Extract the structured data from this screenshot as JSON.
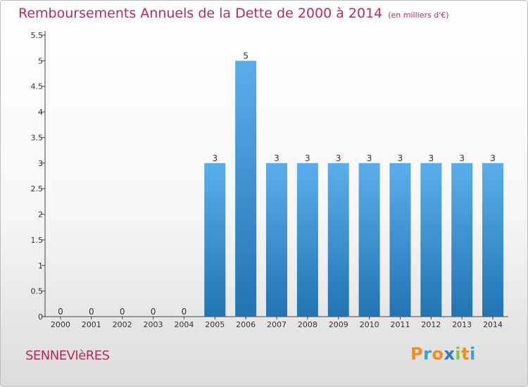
{
  "title": "Remboursements Annuels de la Dette de 2000 à 2014",
  "unit": "(en milliers d'€)",
  "commune": "SENNEVIèRES",
  "brand": {
    "text": "Proxiti",
    "letter_colors": [
      "#f28c1e",
      "#3aa0d8",
      "#f28c1e",
      "#2e7dc0",
      "#8cc63f",
      "#f28c1e",
      "#3aa0d8"
    ]
  },
  "colors": {
    "title": "#b72b58",
    "bar_top": "#5aaee9",
    "bar_bottom": "#2174b3"
  },
  "chart_data": {
    "type": "bar",
    "categories": [
      "2000",
      "2001",
      "2002",
      "2003",
      "2004",
      "2005",
      "2006",
      "2007",
      "2008",
      "2009",
      "2010",
      "2011",
      "2012",
      "2013",
      "2014"
    ],
    "values": [
      0,
      0,
      0,
      0,
      0,
      3,
      5,
      3,
      3,
      3,
      3,
      3,
      3,
      3,
      3
    ],
    "data_labels": [
      "0",
      "0",
      "0",
      "0",
      "0",
      "3",
      "5",
      "3",
      "3",
      "3",
      "3",
      "3",
      "3",
      "3",
      "3"
    ],
    "ylim": [
      0,
      5.5
    ],
    "yticks": [
      0,
      0.5,
      1,
      1.5,
      2,
      2.5,
      3,
      3.5,
      4,
      4.5,
      5,
      5.5
    ],
    "ytick_labels": [
      "0",
      "0.5",
      "1",
      "1.5",
      "2",
      "2.5",
      "3",
      "3.5",
      "4",
      "4.5",
      "5",
      "5.5"
    ],
    "xlabel": "",
    "ylabel": "",
    "grid": false,
    "legend": "none"
  }
}
